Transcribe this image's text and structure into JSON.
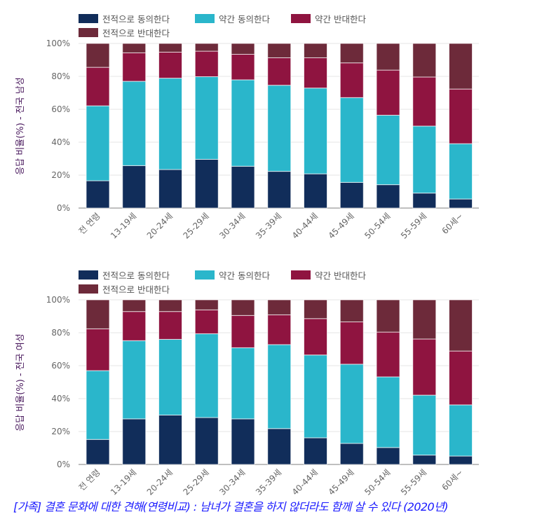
{
  "footer": {
    "text": "[가족] 결혼 문화에 대한 견해(연령비교) : 남녀가 결혼을 하지 않더라도 함께 살 수 있다 (2020년)"
  },
  "legend_items": [
    {
      "label": "전적으로 동의한다",
      "color": "#112d5a"
    },
    {
      "label": "약간 동의한다",
      "color": "#2ab6cb"
    },
    {
      "label": "약간 반대한다",
      "color": "#8f1440"
    },
    {
      "label": "전적으로 반대한다",
      "color": "#6d2a3a"
    }
  ],
  "chart_data": [
    {
      "type": "bar",
      "stacked": true,
      "ylabel": "응답 비율(%) - 전국 남성",
      "xlabel": "",
      "ylim": [
        0,
        100
      ],
      "yticks": [
        "0%",
        "20%",
        "40%",
        "60%",
        "80%",
        "100%"
      ],
      "grid": true,
      "legend_position": "top-left",
      "categories": [
        "전 연령",
        "13-19세",
        "20-24세",
        "25-29세",
        "30-34세",
        "35-39세",
        "40-44세",
        "45-49세",
        "50-54세",
        "55-59세",
        "60세~"
      ],
      "series": [
        {
          "name": "전적으로 동의한다",
          "color": "#112d5a",
          "values": [
            16.6,
            25.8,
            23.4,
            29.6,
            25.4,
            22.3,
            20.8,
            15.6,
            14.2,
            9.1,
            5.5
          ]
        },
        {
          "name": "약간 동의한다",
          "color": "#2ab6cb",
          "values": [
            45.5,
            51.2,
            55.5,
            50.2,
            52.5,
            52.3,
            52.1,
            51.5,
            42.2,
            40.7,
            33.6
          ]
        },
        {
          "name": "약간 반대한다",
          "color": "#8f1440",
          "values": [
            23.4,
            17.3,
            15.8,
            15.5,
            15.5,
            16.7,
            18.4,
            21.1,
            27.4,
            29.8,
            33.2
          ]
        },
        {
          "name": "전적으로 반대한다",
          "color": "#6d2a3a",
          "values": [
            14.5,
            5.7,
            5.3,
            4.7,
            6.6,
            8.7,
            8.7,
            11.8,
            16.2,
            20.4,
            27.7
          ]
        }
      ]
    },
    {
      "type": "bar",
      "stacked": true,
      "ylabel": "응답 비율(%) - 전국 여성",
      "xlabel": "",
      "ylim": [
        0,
        100
      ],
      "yticks": [
        "0%",
        "20%",
        "40%",
        "60%",
        "80%",
        "100%"
      ],
      "grid": true,
      "legend_position": "top-left",
      "categories": [
        "전 연령",
        "13-19세",
        "20-24세",
        "25-29세",
        "30-34세",
        "35-39세",
        "40-44세",
        "45-49세",
        "50-54세",
        "55-59세",
        "60세~"
      ],
      "series": [
        {
          "name": "전적으로 동의한다",
          "color": "#112d5a",
          "values": [
            15.2,
            27.7,
            30.0,
            28.5,
            27.7,
            21.8,
            16.2,
            12.8,
            10.3,
            5.7,
            5.1
          ]
        },
        {
          "name": "약간 동의한다",
          "color": "#2ab6cb",
          "values": [
            41.8,
            47.5,
            46.0,
            50.9,
            43.2,
            51.0,
            50.3,
            48.1,
            42.9,
            36.4,
            31.1
          ]
        },
        {
          "name": "약간 반대한다",
          "color": "#8f1440",
          "values": [
            25.4,
            17.7,
            16.9,
            14.5,
            19.6,
            18.1,
            22.1,
            25.7,
            27.2,
            34.1,
            32.7
          ]
        },
        {
          "name": "전적으로 반대한다",
          "color": "#6d2a3a",
          "values": [
            17.6,
            7.1,
            7.1,
            6.1,
            9.5,
            9.1,
            11.4,
            13.4,
            19.6,
            23.8,
            31.1
          ]
        }
      ]
    }
  ]
}
